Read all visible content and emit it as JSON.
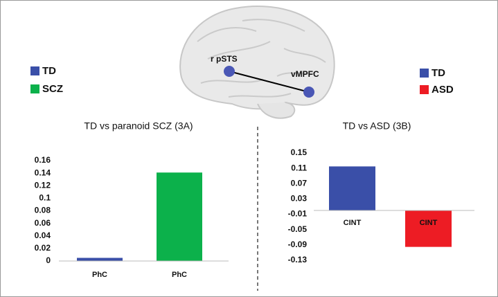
{
  "brain_labels": [
    "r pSTS",
    "vMPFC"
  ],
  "chart_data": [
    {
      "type": "bar",
      "title": "TD vs paranoid SCZ (3A)",
      "categories": [
        "PhC",
        "PhC"
      ],
      "values": [
        0.005,
        0.141
      ],
      "colors": [
        "#3a4fa8",
        "#0cb14b"
      ],
      "legend": [
        {
          "name": "TD",
          "color": "#3a4fa8"
        },
        {
          "name": "SCZ",
          "color": "#0cb14b"
        }
      ],
      "ylim": [
        0,
        0.16
      ],
      "yticks": [
        0,
        0.02,
        0.04,
        0.06,
        0.08,
        0.1,
        0.12,
        0.14,
        0.16
      ]
    },
    {
      "type": "bar",
      "title": "TD vs ASD (3B)",
      "categories": [
        "CINT",
        "CINT"
      ],
      "values": [
        0.115,
        -0.095
      ],
      "colors": [
        "#3a4fa8",
        "#ed1c24"
      ],
      "legend": [
        {
          "name": "TD",
          "color": "#3a4fa8"
        },
        {
          "name": "ASD",
          "color": "#ed1c24"
        }
      ],
      "ylim": [
        -0.13,
        0.15
      ],
      "yticks": [
        -0.13,
        -0.09,
        -0.05,
        -0.01,
        0.03,
        0.07,
        0.11,
        0.15
      ]
    }
  ]
}
